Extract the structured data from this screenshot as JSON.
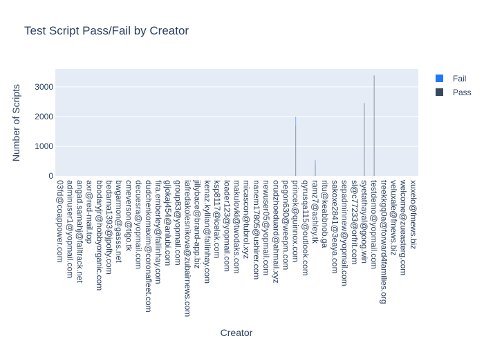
{
  "chart_data": {
    "type": "bar",
    "title": "Test Script Pass/Fail by Creator",
    "xlabel": "Creator",
    "ylabel": "Number of Scripts",
    "ylim": [
      0,
      3600
    ],
    "y_ticks": [
      0,
      1000,
      2000,
      3000
    ],
    "grid": true,
    "legend_position": "right",
    "colors": {
      "Fail": "#1f77ff",
      "Pass": "#34495e",
      "plot_bg": "#e5ecf6",
      "grid": "#ffffff"
    },
    "categories": [
      "03fd@coappower.com",
      "adminuser1@yopmail.com",
      "angad.samahj@falltrack.net",
      "axr@red-mail.top",
      "bbodaryjr@hobbyorganic.com",
      "bedarna1393@jpofty.com",
      "bwgarmon@gasss.net",
      "cmeverson@tigo.tk",
      "decuesra@yopmail.com",
      "dudchenkomaxim@coronafleet.com",
      "fira.emberley@fallinhay.com",
      "gljokaj454@anlubi.com",
      "group83@yopmail.com",
      "iafredakolesnikova@zubairnews.com",
      "jillybace@brand-app.biz",
      "kenaz.kyllian@fallinhay.com",
      "ksp8117@icelak.com",
      "loader123@yopmail.com",
      "makulovki@twodaks.com",
      "micascon@tubrol.xyz",
      "nanem17805@ushirer.com",
      "newuser05@yopmail.com",
      "orudzhoeduard@ahmail.xyz",
      "pegon630@weepm.com",
      "princek@quinnox.com",
      "qyrusqa115@outlook.com",
      "ramz7@ashley.tk",
      "ritu@keabbnob.ga",
      "sakoxe2841@3eaya.com",
      "sepadminnew@yopmail.com",
      "sl@c77233@orfrit.com",
      "syetathayal@goog.win",
      "testdemo@yopmail.com",
      "treekkgq0a@forward4families.org",
      "veluxale@fmews.biz",
      "welcome@zueasterg.com",
      "xuxelo@fmews.biz"
    ],
    "series": [
      {
        "name": "Pass",
        "values": [
          0,
          0,
          0,
          0,
          0,
          0,
          0,
          0,
          0,
          0,
          0,
          0,
          0,
          0,
          0,
          0,
          0,
          0,
          0,
          0,
          0,
          0,
          0,
          0,
          1700,
          0,
          420,
          0,
          0,
          0,
          0,
          2450,
          3380,
          0,
          0,
          0,
          0
        ]
      },
      {
        "name": "Fail",
        "values": [
          0,
          0,
          0,
          0,
          0,
          0,
          0,
          0,
          0,
          0,
          0,
          0,
          0,
          0,
          0,
          0,
          0,
          0,
          0,
          0,
          0,
          0,
          0,
          0,
          300,
          0,
          120,
          0,
          0,
          0,
          0,
          0,
          0,
          0,
          0,
          0,
          0
        ]
      }
    ]
  }
}
